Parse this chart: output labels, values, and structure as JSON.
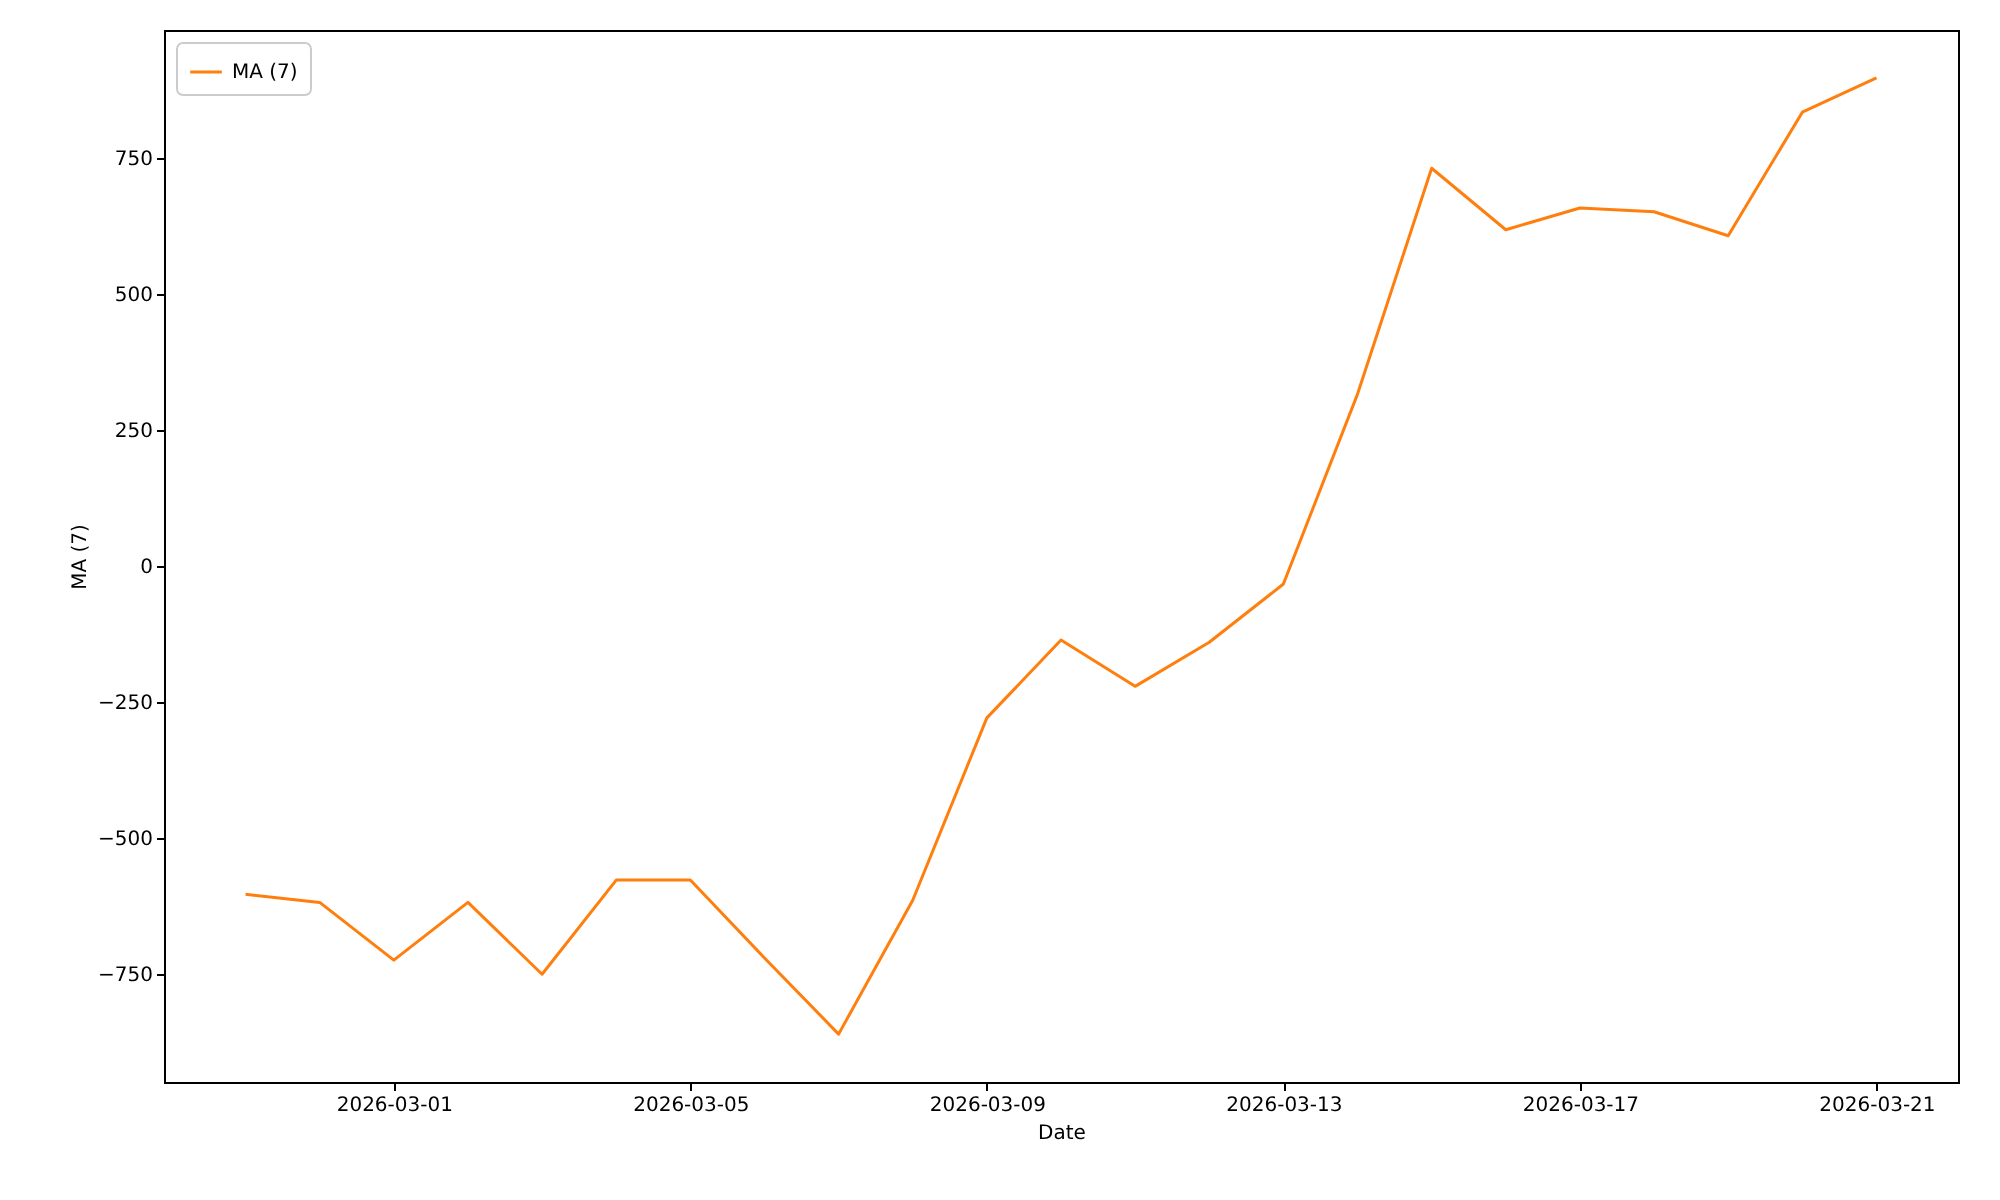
{
  "chart_data": {
    "type": "line",
    "xlabel": "Date",
    "ylabel": "MA (7)",
    "x": [
      "2026-02-27",
      "2026-02-28",
      "2026-03-01",
      "2026-03-02",
      "2026-03-03",
      "2026-03-04",
      "2026-03-05",
      "2026-03-06",
      "2026-03-07",
      "2026-03-08",
      "2026-03-09",
      "2026-03-10",
      "2026-03-11",
      "2026-03-12",
      "2026-03-13",
      "2026-03-14",
      "2026-03-15",
      "2026-03-16",
      "2026-03-17",
      "2026-03-18",
      "2026-03-19",
      "2026-03-20",
      "2026-03-21"
    ],
    "series": [
      {
        "name": "MA (7)",
        "color": "#ff7f0e",
        "values": [
          -603,
          -618,
          -724,
          -618,
          -750,
          -577,
          -577,
          -720,
          -860,
          -614,
          -279,
          -136,
          -221,
          -140,
          -33,
          316,
          731,
          618,
          658,
          651,
          607,
          834,
          897
        ]
      }
    ],
    "xlim": [
      "2026-02-25T21:36",
      "2026-03-22T02:24"
    ],
    "xticks": [
      "2026-03-01",
      "2026-03-05",
      "2026-03-09",
      "2026-03-13",
      "2026-03-17",
      "2026-03-21"
    ],
    "ylim": [
      -948,
      985
    ],
    "yticks": [
      -750,
      -500,
      -250,
      0,
      250,
      500,
      750
    ],
    "grid": false,
    "legend": "top left",
    "marker": "none",
    "line_style": "solid"
  }
}
